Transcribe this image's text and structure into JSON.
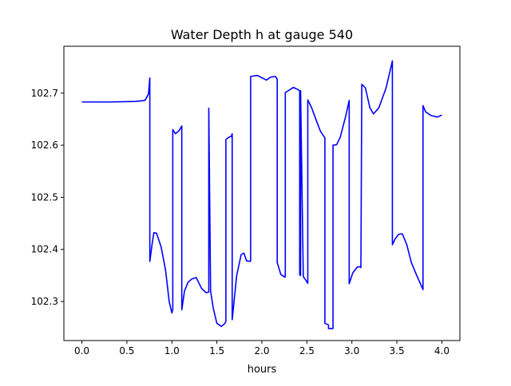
{
  "chart_data": {
    "type": "line",
    "title": "Water Depth h at gauge 540",
    "xlabel": "hours",
    "ylabel": "",
    "xlim": [
      -0.2,
      4.2
    ],
    "ylim": [
      102.225,
      102.79
    ],
    "xticks": [
      0.0,
      0.5,
      1.0,
      1.5,
      2.0,
      2.5,
      3.0,
      3.5,
      4.0
    ],
    "xtick_labels": [
      "0.0",
      "0.5",
      "1.0",
      "1.5",
      "2.0",
      "2.5",
      "3.0",
      "3.5",
      "4.0"
    ],
    "yticks": [
      102.3,
      102.4,
      102.5,
      102.6,
      102.7
    ],
    "ytick_labels": [
      "102.3",
      "102.4",
      "102.5",
      "102.6",
      "102.7"
    ],
    "grid": false,
    "series": [
      {
        "color": "#0000ff",
        "x": [
          0.0,
          0.3,
          0.6,
          0.7,
          0.74,
          0.755,
          0.755,
          0.78,
          0.8,
          0.83,
          0.88,
          0.93,
          0.97,
          1.0,
          1.01,
          1.01,
          1.04,
          1.08,
          1.11,
          1.11,
          1.14,
          1.18,
          1.22,
          1.27,
          1.33,
          1.38,
          1.41,
          1.41,
          1.43,
          1.46,
          1.5,
          1.55,
          1.59,
          1.6,
          1.6,
          1.63,
          1.66,
          1.67,
          1.67,
          1.72,
          1.77,
          1.8,
          1.83,
          1.87,
          1.875,
          1.875,
          1.95,
          2.05,
          2.1,
          2.15,
          2.17,
          2.17,
          2.21,
          2.25,
          2.26,
          2.26,
          2.35,
          2.4,
          2.42,
          2.42,
          2.43,
          2.43,
          2.46,
          2.51,
          2.51,
          2.55,
          2.61,
          2.65,
          2.7,
          2.7,
          2.74,
          2.74,
          2.79,
          2.79,
          2.83,
          2.87,
          2.93,
          2.97,
          2.97,
          3.01,
          3.06,
          3.1,
          3.1,
          3.11,
          3.15,
          3.2,
          3.24,
          3.3,
          3.38,
          3.45,
          3.45,
          3.48,
          3.52,
          3.56,
          3.61,
          3.66,
          3.72,
          3.79,
          3.79,
          3.82,
          3.88,
          3.95,
          4.0
        ],
        "y": [
          102.683,
          102.683,
          102.684,
          102.686,
          102.698,
          102.729,
          102.377,
          102.41,
          102.432,
          102.431,
          102.405,
          102.36,
          102.3,
          102.278,
          102.285,
          102.63,
          102.622,
          102.628,
          102.637,
          102.284,
          102.32,
          102.337,
          102.343,
          102.346,
          102.325,
          102.317,
          102.318,
          102.671,
          102.32,
          102.287,
          102.258,
          102.252,
          102.258,
          102.262,
          102.611,
          102.615,
          102.617,
          102.622,
          102.265,
          102.35,
          102.39,
          102.393,
          102.378,
          102.377,
          102.378,
          102.732,
          102.734,
          102.725,
          102.731,
          102.732,
          102.727,
          102.375,
          102.352,
          102.347,
          102.347,
          102.701,
          102.711,
          102.707,
          102.704,
          102.351,
          102.35,
          102.705,
          102.348,
          102.335,
          102.687,
          102.673,
          102.645,
          102.627,
          102.614,
          102.258,
          102.255,
          102.248,
          102.248,
          102.6,
          102.601,
          102.615,
          102.655,
          102.686,
          102.334,
          102.355,
          102.366,
          102.367,
          102.365,
          102.717,
          102.71,
          102.672,
          102.66,
          102.672,
          102.71,
          102.762,
          102.409,
          102.42,
          102.429,
          102.43,
          102.409,
          102.375,
          102.35,
          102.323,
          102.676,
          102.664,
          102.657,
          102.654,
          102.658
        ]
      }
    ]
  }
}
